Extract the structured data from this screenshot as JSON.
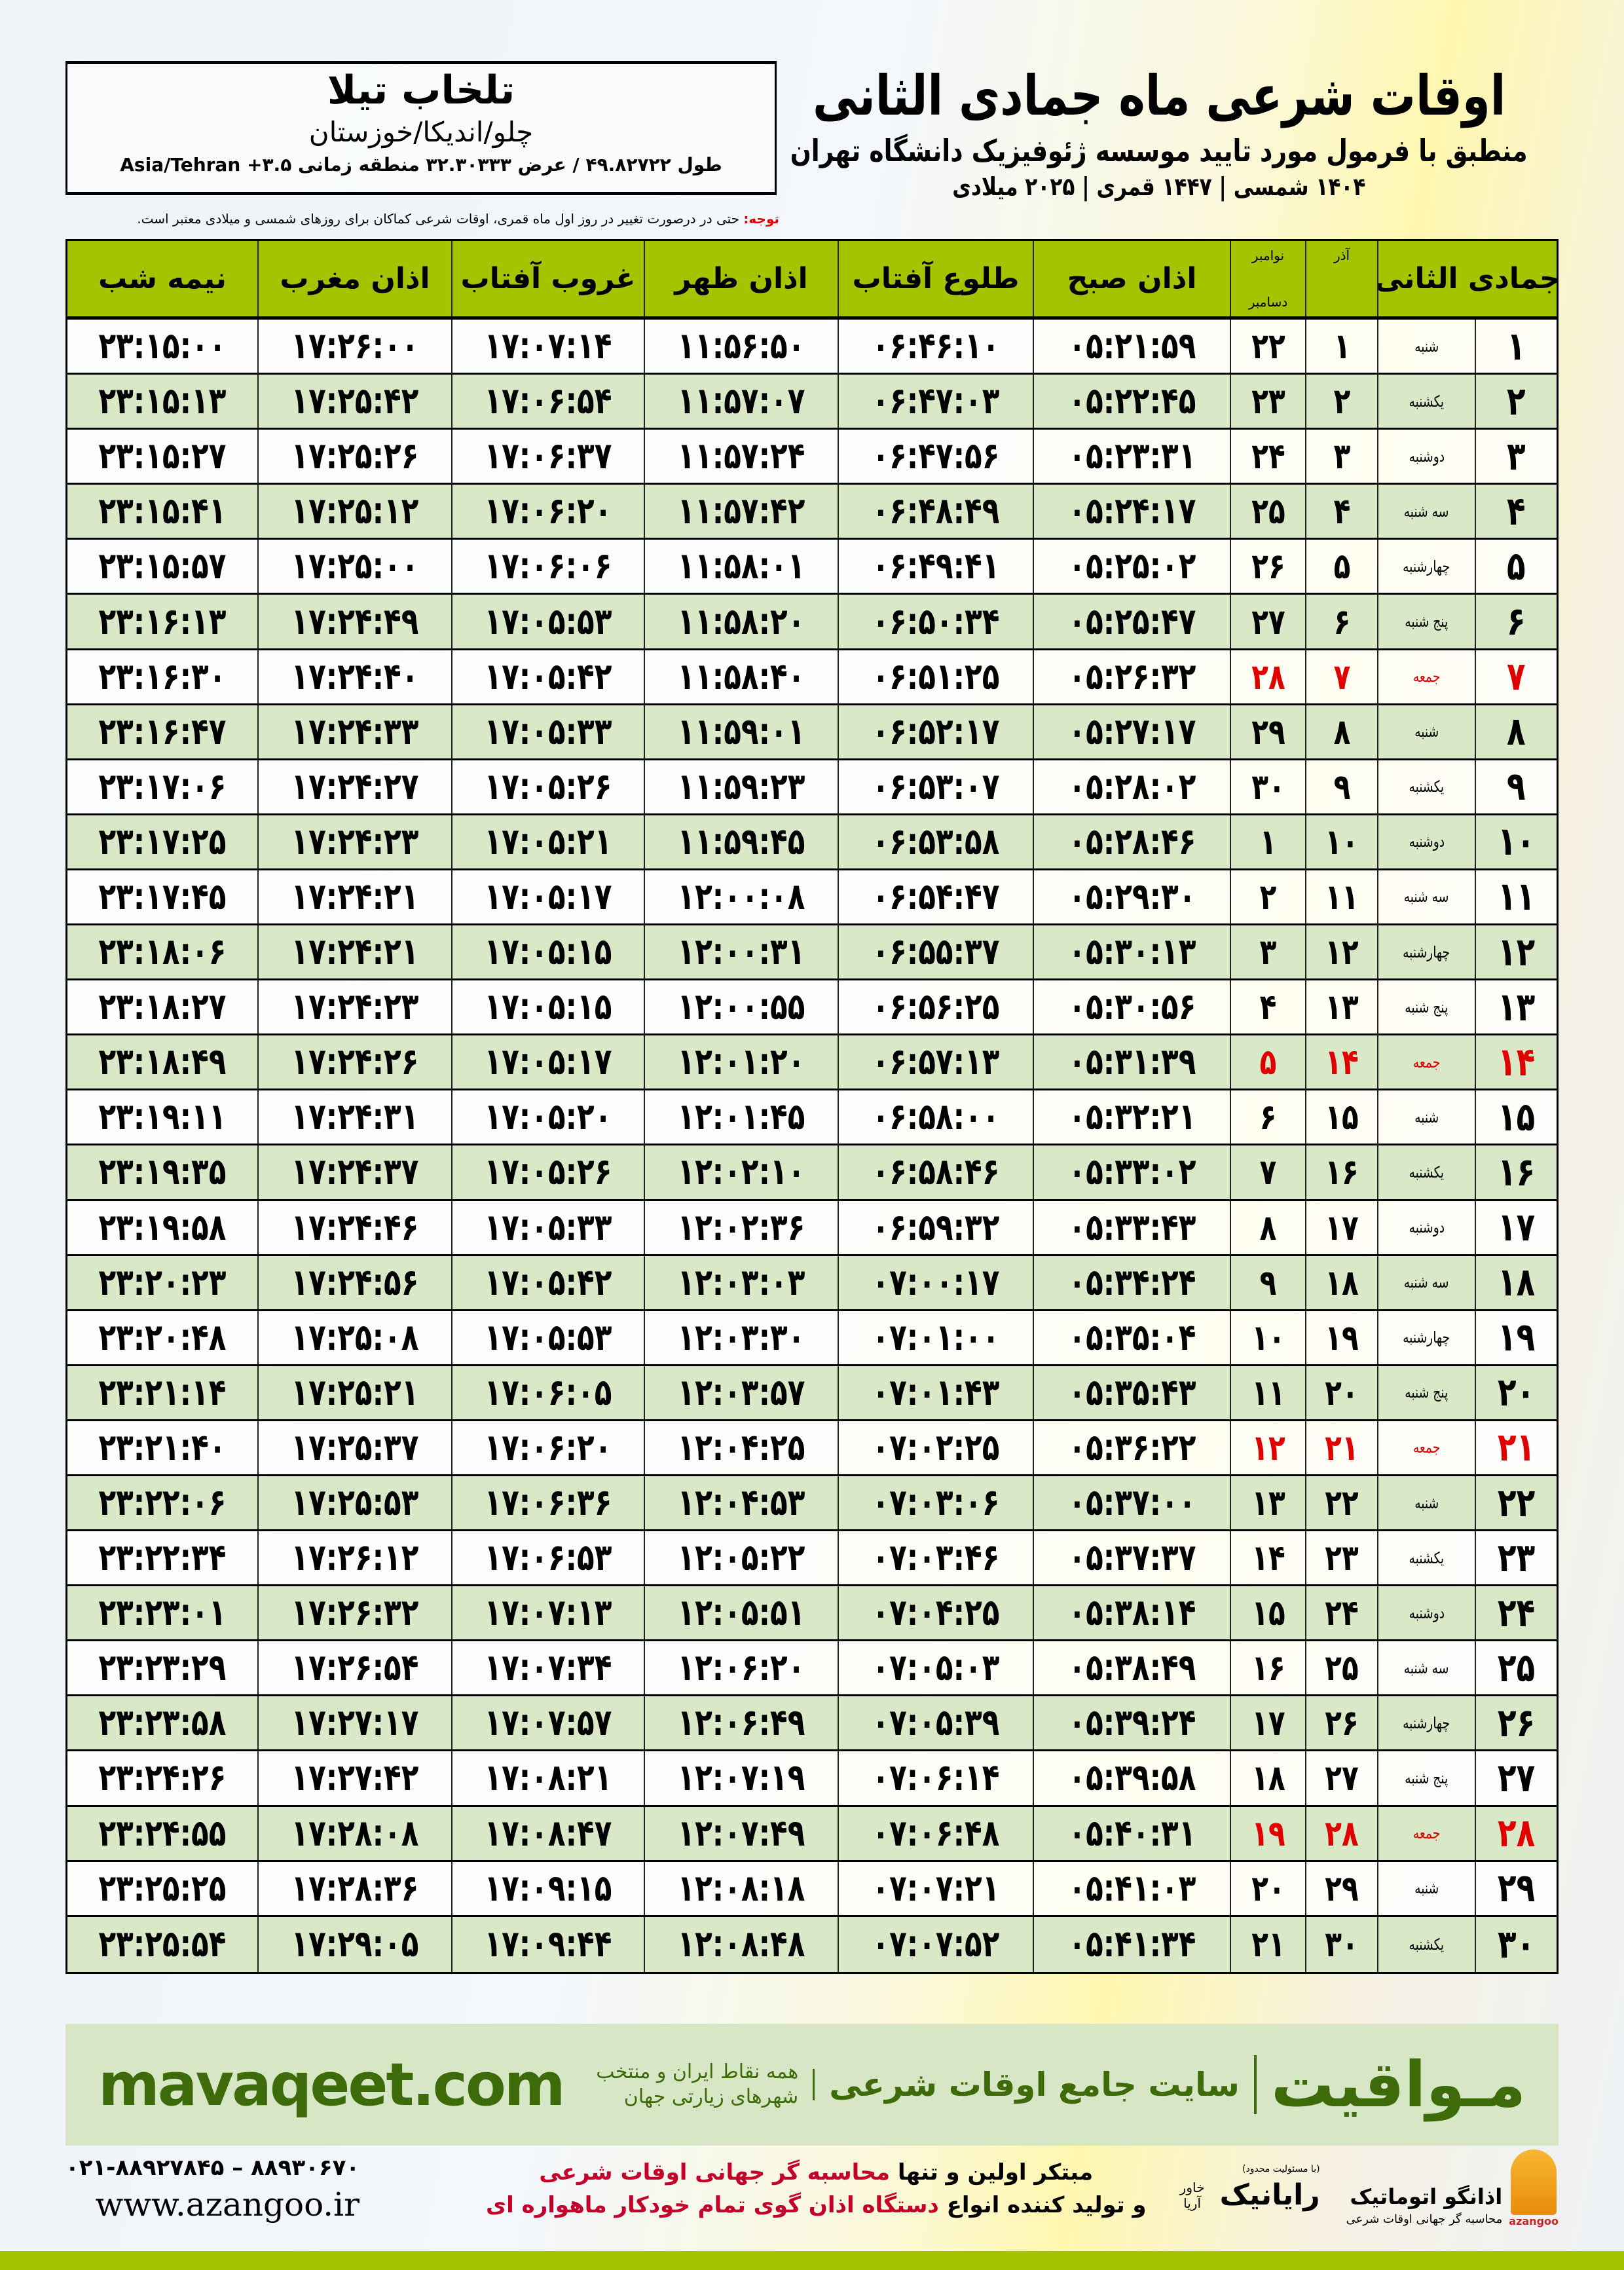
{
  "header": {
    "title": "اوقات شرعی ماه جمادی الثانی",
    "subtitle": "منطبق با فرمول مورد تایید موسسه ژئوفیزیک دانشگاه تهران",
    "years": "۱۴۰۴ شمسی | ۱۴۴۷ قمری | ۲۰۲۵ میلادی"
  },
  "location": {
    "city": "تلخاب تیلا",
    "region": "چلو/اندیکا/خوزستان",
    "coords": "طول ۴۹.۸۲۷۲۲ / عرض ۳۲.۳۰۳۳۳ منطقه زمانی Asia/Tehran +۳.۵"
  },
  "note": {
    "label": "توجه:",
    "text": " حتی در درصورت تغییر در روز اول ماه قمری، اوقات شرعی کماکان برای روزهای شمسی و میلادی معتبر است."
  },
  "table": {
    "headers": {
      "hijri": "جمادی الثانی",
      "azar": "آذر",
      "greg_top": "نوامبر",
      "greg_bottom": "دسامبر",
      "fajr": "اذان صبح",
      "sunrise": "طلوع آفتاب",
      "dhuhr": "اذان ظهر",
      "sunset": "غروب آفتاب",
      "maghrib": "اذان مغرب",
      "midnight": "نیمه شب"
    },
    "holiday_color": "#e00000",
    "header_color": "#a5c400",
    "rows": [
      [
        "۱",
        "شنبه",
        "۱",
        "۲۲",
        "۰۵:۲۱:۵۹",
        "۰۶:۴۶:۱۰",
        "۱۱:۵۶:۵۰",
        "۱۷:۰۷:۱۴",
        "۱۷:۲۶:۰۰",
        "۲۳:۱۵:۰۰"
      ],
      [
        "۲",
        "یکشنبه",
        "۲",
        "۲۳",
        "۰۵:۲۲:۴۵",
        "۰۶:۴۷:۰۳",
        "۱۱:۵۷:۰۷",
        "۱۷:۰۶:۵۴",
        "۱۷:۲۵:۴۲",
        "۲۳:۱۵:۱۳"
      ],
      [
        "۳",
        "دوشنبه",
        "۳",
        "۲۴",
        "۰۵:۲۳:۳۱",
        "۰۶:۴۷:۵۶",
        "۱۱:۵۷:۲۴",
        "۱۷:۰۶:۳۷",
        "۱۷:۲۵:۲۶",
        "۲۳:۱۵:۲۷"
      ],
      [
        "۴",
        "سه شنبه",
        "۴",
        "۲۵",
        "۰۵:۲۴:۱۷",
        "۰۶:۴۸:۴۹",
        "۱۱:۵۷:۴۲",
        "۱۷:۰۶:۲۰",
        "۱۷:۲۵:۱۲",
        "۲۳:۱۵:۴۱"
      ],
      [
        "۵",
        "چهارشنبه",
        "۵",
        "۲۶",
        "۰۵:۲۵:۰۲",
        "۰۶:۴۹:۴۱",
        "۱۱:۵۸:۰۱",
        "۱۷:۰۶:۰۶",
        "۱۷:۲۵:۰۰",
        "۲۳:۱۵:۵۷"
      ],
      [
        "۶",
        "پنج شنبه",
        "۶",
        "۲۷",
        "۰۵:۲۵:۴۷",
        "۰۶:۵۰:۳۴",
        "۱۱:۵۸:۲۰",
        "۱۷:۰۵:۵۳",
        "۱۷:۲۴:۴۹",
        "۲۳:۱۶:۱۳"
      ],
      [
        "۷",
        "جمعه",
        "۷",
        "۲۸",
        "۰۵:۲۶:۳۲",
        "۰۶:۵۱:۲۵",
        "۱۱:۵۸:۴۰",
        "۱۷:۰۵:۴۲",
        "۱۷:۲۴:۴۰",
        "۲۳:۱۶:۳۰"
      ],
      [
        "۸",
        "شنبه",
        "۸",
        "۲۹",
        "۰۵:۲۷:۱۷",
        "۰۶:۵۲:۱۷",
        "۱۱:۵۹:۰۱",
        "۱۷:۰۵:۳۳",
        "۱۷:۲۴:۳۳",
        "۲۳:۱۶:۴۷"
      ],
      [
        "۹",
        "یکشنبه",
        "۹",
        "۳۰",
        "۰۵:۲۸:۰۲",
        "۰۶:۵۳:۰۷",
        "۱۱:۵۹:۲۳",
        "۱۷:۰۵:۲۶",
        "۱۷:۲۴:۲۷",
        "۲۳:۱۷:۰۶"
      ],
      [
        "۱۰",
        "دوشنبه",
        "۱۰",
        "۱",
        "۰۵:۲۸:۴۶",
        "۰۶:۵۳:۵۸",
        "۱۱:۵۹:۴۵",
        "۱۷:۰۵:۲۱",
        "۱۷:۲۴:۲۳",
        "۲۳:۱۷:۲۵"
      ],
      [
        "۱۱",
        "سه شنبه",
        "۱۱",
        "۲",
        "۰۵:۲۹:۳۰",
        "۰۶:۵۴:۴۷",
        "۱۲:۰۰:۰۸",
        "۱۷:۰۵:۱۷",
        "۱۷:۲۴:۲۱",
        "۲۳:۱۷:۴۵"
      ],
      [
        "۱۲",
        "چهارشنبه",
        "۱۲",
        "۳",
        "۰۵:۳۰:۱۳",
        "۰۶:۵۵:۳۷",
        "۱۲:۰۰:۳۱",
        "۱۷:۰۵:۱۵",
        "۱۷:۲۴:۲۱",
        "۲۳:۱۸:۰۶"
      ],
      [
        "۱۳",
        "پنج شنبه",
        "۱۳",
        "۴",
        "۰۵:۳۰:۵۶",
        "۰۶:۵۶:۲۵",
        "۱۲:۰۰:۵۵",
        "۱۷:۰۵:۱۵",
        "۱۷:۲۴:۲۳",
        "۲۳:۱۸:۲۷"
      ],
      [
        "۱۴",
        "جمعه",
        "۱۴",
        "۵",
        "۰۵:۳۱:۳۹",
        "۰۶:۵۷:۱۳",
        "۱۲:۰۱:۲۰",
        "۱۷:۰۵:۱۷",
        "۱۷:۲۴:۲۶",
        "۲۳:۱۸:۴۹"
      ],
      [
        "۱۵",
        "شنبه",
        "۱۵",
        "۶",
        "۰۵:۳۲:۲۱",
        "۰۶:۵۸:۰۰",
        "۱۲:۰۱:۴۵",
        "۱۷:۰۵:۲۰",
        "۱۷:۲۴:۳۱",
        "۲۳:۱۹:۱۱"
      ],
      [
        "۱۶",
        "یکشنبه",
        "۱۶",
        "۷",
        "۰۵:۳۳:۰۲",
        "۰۶:۵۸:۴۶",
        "۱۲:۰۲:۱۰",
        "۱۷:۰۵:۲۶",
        "۱۷:۲۴:۳۷",
        "۲۳:۱۹:۳۵"
      ],
      [
        "۱۷",
        "دوشنبه",
        "۱۷",
        "۸",
        "۰۵:۳۳:۴۳",
        "۰۶:۵۹:۳۲",
        "۱۲:۰۲:۳۶",
        "۱۷:۰۵:۳۳",
        "۱۷:۲۴:۴۶",
        "۲۳:۱۹:۵۸"
      ],
      [
        "۱۸",
        "سه شنبه",
        "۱۸",
        "۹",
        "۰۵:۳۴:۲۴",
        "۰۷:۰۰:۱۷",
        "۱۲:۰۳:۰۳",
        "۱۷:۰۵:۴۲",
        "۱۷:۲۴:۵۶",
        "۲۳:۲۰:۲۳"
      ],
      [
        "۱۹",
        "چهارشنبه",
        "۱۹",
        "۱۰",
        "۰۵:۳۵:۰۴",
        "۰۷:۰۱:۰۰",
        "۱۲:۰۳:۳۰",
        "۱۷:۰۵:۵۳",
        "۱۷:۲۵:۰۸",
        "۲۳:۲۰:۴۸"
      ],
      [
        "۲۰",
        "پنج شنبه",
        "۲۰",
        "۱۱",
        "۰۵:۳۵:۴۳",
        "۰۷:۰۱:۴۳",
        "۱۲:۰۳:۵۷",
        "۱۷:۰۶:۰۵",
        "۱۷:۲۵:۲۱",
        "۲۳:۲۱:۱۴"
      ],
      [
        "۲۱",
        "جمعه",
        "۲۱",
        "۱۲",
        "۰۵:۳۶:۲۲",
        "۰۷:۰۲:۲۵",
        "۱۲:۰۴:۲۵",
        "۱۷:۰۶:۲۰",
        "۱۷:۲۵:۳۷",
        "۲۳:۲۱:۴۰"
      ],
      [
        "۲۲",
        "شنبه",
        "۲۲",
        "۱۳",
        "۰۵:۳۷:۰۰",
        "۰۷:۰۳:۰۶",
        "۱۲:۰۴:۵۳",
        "۱۷:۰۶:۳۶",
        "۱۷:۲۵:۵۳",
        "۲۳:۲۲:۰۶"
      ],
      [
        "۲۳",
        "یکشنبه",
        "۲۳",
        "۱۴",
        "۰۵:۳۷:۳۷",
        "۰۷:۰۳:۴۶",
        "۱۲:۰۵:۲۲",
        "۱۷:۰۶:۵۳",
        "۱۷:۲۶:۱۲",
        "۲۳:۲۲:۳۴"
      ],
      [
        "۲۴",
        "دوشنبه",
        "۲۴",
        "۱۵",
        "۰۵:۳۸:۱۴",
        "۰۷:۰۴:۲۵",
        "۱۲:۰۵:۵۱",
        "۱۷:۰۷:۱۳",
        "۱۷:۲۶:۳۲",
        "۲۳:۲۳:۰۱"
      ],
      [
        "۲۵",
        "سه شنبه",
        "۲۵",
        "۱۶",
        "۰۵:۳۸:۴۹",
        "۰۷:۰۵:۰۳",
        "۱۲:۰۶:۲۰",
        "۱۷:۰۷:۳۴",
        "۱۷:۲۶:۵۴",
        "۲۳:۲۳:۲۹"
      ],
      [
        "۲۶",
        "چهارشنبه",
        "۲۶",
        "۱۷",
        "۰۵:۳۹:۲۴",
        "۰۷:۰۵:۳۹",
        "۱۲:۰۶:۴۹",
        "۱۷:۰۷:۵۷",
        "۱۷:۲۷:۱۷",
        "۲۳:۲۳:۵۸"
      ],
      [
        "۲۷",
        "پنج شنبه",
        "۲۷",
        "۱۸",
        "۰۵:۳۹:۵۸",
        "۰۷:۰۶:۱۴",
        "۱۲:۰۷:۱۹",
        "۱۷:۰۸:۲۱",
        "۱۷:۲۷:۴۲",
        "۲۳:۲۴:۲۶"
      ],
      [
        "۲۸",
        "جمعه",
        "۲۸",
        "۱۹",
        "۰۵:۴۰:۳۱",
        "۰۷:۰۶:۴۸",
        "۱۲:۰۷:۴۹",
        "۱۷:۰۸:۴۷",
        "۱۷:۲۸:۰۸",
        "۲۳:۲۴:۵۵"
      ],
      [
        "۲۹",
        "شنبه",
        "۲۹",
        "۲۰",
        "۰۵:۴۱:۰۳",
        "۰۷:۰۷:۲۱",
        "۱۲:۰۸:۱۸",
        "۱۷:۰۹:۱۵",
        "۱۷:۲۸:۳۶",
        "۲۳:۲۵:۲۵"
      ],
      [
        "۳۰",
        "یکشنبه",
        "۳۰",
        "۲۱",
        "۰۵:۴۱:۳۴",
        "۰۷:۰۷:۵۲",
        "۱۲:۰۸:۴۸",
        "۱۷:۰۹:۴۴",
        "۱۷:۲۹:۰۵",
        "۲۳:۲۵:۵۴"
      ]
    ]
  },
  "footer": {
    "brand": "مـواقیت",
    "brand_sub": "سایت جامع اوقات شرعی",
    "brand_sub2": "همه نقاط ایران و منتخب شهرهای زیارتی جهان",
    "site": "mavaqeet.com",
    "brand_color": "#3e6b0a",
    "azangoo_logo": {
      "name": "اذانگو اتوماتیک",
      "tagline": "محاسبه گر جهانی اوقات شرعی",
      "latin": "azangoo"
    },
    "rayanik_logo": {
      "note": "(با مسئولیت محدود)",
      "name": "رایانیک",
      "sub": "خاور آریا"
    },
    "line1_a": "مبتکر اولین و تنها ",
    "line1_b": "محاسبه گر جهانی اوقات شرعی",
    "line2_a": "و تولید کننده انواع ",
    "line2_b": "دستگاه اذان گوی تمام خودکار ماهواره ای",
    "phone": "۰۲۱-۸۸۹۲۷۸۴۵ – ۸۸۹۳۰۶۷۰",
    "www": "www.azangoo.ir"
  }
}
